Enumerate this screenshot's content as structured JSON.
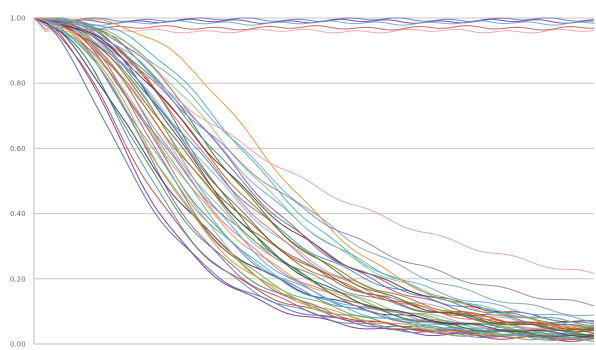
{
  "chart_data": {
    "type": "line",
    "title": "",
    "xlabel": "",
    "ylabel": "",
    "ylim": [
      0,
      1
    ],
    "xlim": [
      0,
      100
    ],
    "grid": true,
    "legend": "none",
    "y_ticks": [
      "1.00",
      "0.80",
      "0.60",
      "0.40",
      "0.20",
      "0.00"
    ],
    "y_tick_values": [
      1.0,
      0.8,
      0.6,
      0.4,
      0.2,
      0.0
    ],
    "series_shape": "sigmoid decay y = 1/(1+((x+4)/mid)^k)",
    "series": [
      {
        "mid": 22,
        "k": 2.6,
        "color": "#4f5fb8"
      },
      {
        "mid": 23,
        "k": 2.9,
        "color": "#7b2d8e"
      },
      {
        "mid": 24,
        "k": 2.7,
        "color": "#b04a3a"
      },
      {
        "mid": 25,
        "k": 3.0,
        "color": "#5c7fc7"
      },
      {
        "mid": 26,
        "k": 2.8,
        "color": "#3e8e57"
      },
      {
        "mid": 27,
        "k": 3.2,
        "color": "#9f4c9a"
      },
      {
        "mid": 27,
        "k": 2.5,
        "color": "#2b2b6e"
      },
      {
        "mid": 28,
        "k": 3.1,
        "color": "#e08a3c"
      },
      {
        "mid": 28,
        "k": 2.9,
        "color": "#6aa84f"
      },
      {
        "mid": 29,
        "k": 3.3,
        "color": "#c0504d"
      },
      {
        "mid": 29,
        "k": 2.7,
        "color": "#4aacc6"
      },
      {
        "mid": 30,
        "k": 3.0,
        "color": "#8064a2"
      },
      {
        "mid": 30,
        "k": 3.5,
        "color": "#9bbb59"
      },
      {
        "mid": 31,
        "k": 2.8,
        "color": "#f79646"
      },
      {
        "mid": 31,
        "k": 3.2,
        "color": "#4bacc6"
      },
      {
        "mid": 32,
        "k": 3.0,
        "color": "#d16b8e"
      },
      {
        "mid": 32,
        "k": 2.6,
        "color": "#7f7f7f"
      },
      {
        "mid": 33,
        "k": 3.4,
        "color": "#5b9bd5"
      },
      {
        "mid": 33,
        "k": 2.9,
        "color": "#a5a5a5"
      },
      {
        "mid": 34,
        "k": 3.1,
        "color": "#70ad47"
      },
      {
        "mid": 34,
        "k": 2.7,
        "color": "#c55a11"
      },
      {
        "mid": 35,
        "k": 3.3,
        "color": "#264478"
      },
      {
        "mid": 35,
        "k": 2.8,
        "color": "#9e480e"
      },
      {
        "mid": 36,
        "k": 3.0,
        "color": "#636363"
      },
      {
        "mid": 36,
        "k": 3.6,
        "color": "#43682b"
      },
      {
        "mid": 37,
        "k": 2.9,
        "color": "#8faadc"
      },
      {
        "mid": 38,
        "k": 3.2,
        "color": "#e06666"
      },
      {
        "mid": 38,
        "k": 2.7,
        "color": "#3d85c6"
      },
      {
        "mid": 39,
        "k": 3.1,
        "color": "#b45f06"
      },
      {
        "mid": 40,
        "k": 3.4,
        "color": "#38761d"
      },
      {
        "mid": 40,
        "k": 2.8,
        "color": "#741b47"
      },
      {
        "mid": 41,
        "k": 3.0,
        "color": "#45818e"
      },
      {
        "mid": 42,
        "k": 3.3,
        "color": "#a64d79"
      },
      {
        "mid": 43,
        "k": 2.9,
        "color": "#6d9eeb"
      },
      {
        "mid": 44,
        "k": 3.2,
        "color": "#93c47d"
      },
      {
        "mid": 46,
        "k": 3.5,
        "color": "#4aacc6"
      },
      {
        "mid": 47,
        "k": 3.0,
        "color": "#76a5af"
      },
      {
        "mid": 49,
        "k": 4.0,
        "color": "#e69138"
      },
      {
        "mid": 52,
        "k": 1.9,
        "color": "#e6a0a0"
      },
      {
        "mid": 45,
        "k": 2.4,
        "color": "#8e7cc3"
      }
    ],
    "flat_series": [
      {
        "level": 0.995,
        "color": "#5a6fbf"
      },
      {
        "level": 0.99,
        "color": "#7b2d8e"
      },
      {
        "level": 0.985,
        "color": "#4aacc6"
      },
      {
        "level": 0.97,
        "color": "#c0504d"
      },
      {
        "level": 0.96,
        "color": "#e6a0a0"
      }
    ]
  }
}
